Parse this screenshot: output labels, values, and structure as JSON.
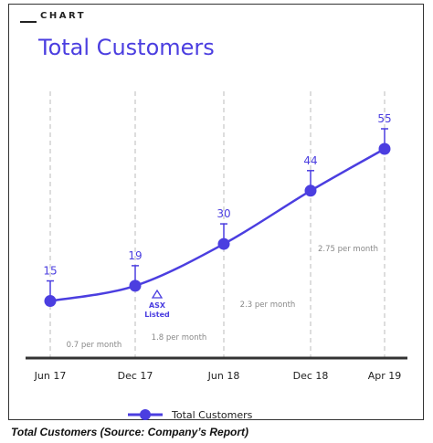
{
  "header": {
    "eyebrow": "CHART",
    "title": "Total Customers"
  },
  "caption": "Total Customers (Source: Company’s Report)",
  "colors": {
    "series": "#4b3ee0",
    "grid": "#bbbbbb",
    "axis": "#333333",
    "note": "#888888"
  },
  "chart_data": {
    "type": "line",
    "title": "Total Customers",
    "categories": [
      "Jun 17",
      "Dec 17",
      "Jun 18",
      "Dec 18",
      "Apr 19"
    ],
    "series": [
      {
        "name": "Total Customers",
        "values": [
          15,
          19,
          30,
          44,
          55
        ]
      }
    ],
    "value_labels": [
      "15",
      "19",
      "30",
      "44",
      "55"
    ],
    "growth_annotations": [
      "0.7 per month",
      "1.8 per month",
      "2.3 per month",
      "2.75 per month"
    ],
    "event_annotation": {
      "category": "Dec 17",
      "lines": [
        "ASX",
        "Listed"
      ]
    },
    "ylim": [
      0,
      60
    ],
    "grid": "vertical dashed",
    "legend": "bottom"
  }
}
